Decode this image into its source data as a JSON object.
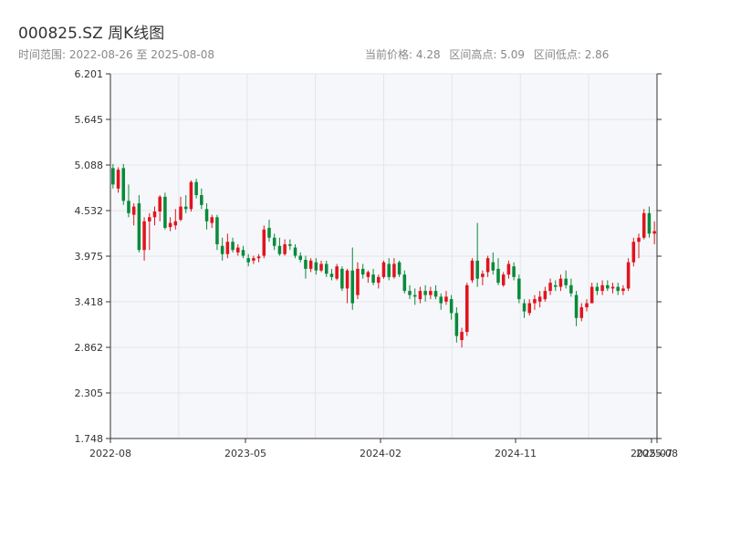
{
  "header": {
    "title": "000825.SZ 周K线图",
    "range_label": "时间范围:",
    "range_start": "2022-08-26",
    "range_sep": "至",
    "range_end": "2025-08-08",
    "current_price_label": "当前价格:",
    "current_price": "4.28",
    "high_label": "区间高点:",
    "high": "5.09",
    "low_label": "区间低点:",
    "low": "2.86"
  },
  "colors": {
    "up": "#e0141e",
    "down": "#0a8a3a",
    "plot_bg": "#f5f7fa",
    "grid": "#e2e6ea",
    "axis": "#333333"
  },
  "chart_data": {
    "type": "candlestick",
    "period": "weekly",
    "ylim": [
      1.748,
      6.201
    ],
    "y_ticks": [
      "1.748",
      "2.305",
      "2.862",
      "3.418",
      "3.975",
      "4.532",
      "5.088",
      "5.645",
      "6.201"
    ],
    "x_tick_labels": [
      "2022-08",
      "2023-05",
      "2024-02",
      "2024-11",
      "2025-07",
      "2025-08"
    ],
    "grid": true,
    "candles": [
      {
        "o": 5.05,
        "h": 5.1,
        "l": 4.8,
        "c": 4.85
      },
      {
        "o": 4.8,
        "h": 5.06,
        "l": 4.75,
        "c": 5.03
      },
      {
        "o": 5.05,
        "h": 5.1,
        "l": 4.6,
        "c": 4.65
      },
      {
        "o": 4.65,
        "h": 4.85,
        "l": 4.45,
        "c": 4.5
      },
      {
        "o": 4.48,
        "h": 4.62,
        "l": 4.35,
        "c": 4.58
      },
      {
        "o": 4.62,
        "h": 4.72,
        "l": 4.02,
        "c": 4.05
      },
      {
        "o": 4.05,
        "h": 4.45,
        "l": 3.92,
        "c": 4.4
      },
      {
        "o": 4.4,
        "h": 4.5,
        "l": 4.05,
        "c": 4.45
      },
      {
        "o": 4.45,
        "h": 4.58,
        "l": 4.35,
        "c": 4.52
      },
      {
        "o": 4.52,
        "h": 4.72,
        "l": 4.4,
        "c": 4.7
      },
      {
        "o": 4.7,
        "h": 4.75,
        "l": 4.3,
        "c": 4.32
      },
      {
        "o": 4.33,
        "h": 4.45,
        "l": 4.28,
        "c": 4.38
      },
      {
        "o": 4.35,
        "h": 4.55,
        "l": 4.3,
        "c": 4.4
      },
      {
        "o": 4.42,
        "h": 4.7,
        "l": 4.4,
        "c": 4.58
      },
      {
        "o": 4.58,
        "h": 4.72,
        "l": 4.5,
        "c": 4.55
      },
      {
        "o": 4.55,
        "h": 4.9,
        "l": 4.52,
        "c": 4.88
      },
      {
        "o": 4.88,
        "h": 4.92,
        "l": 4.68,
        "c": 4.72
      },
      {
        "o": 4.72,
        "h": 4.8,
        "l": 4.55,
        "c": 4.6
      },
      {
        "o": 4.55,
        "h": 4.62,
        "l": 4.3,
        "c": 4.4
      },
      {
        "o": 4.38,
        "h": 4.48,
        "l": 4.32,
        "c": 4.45
      },
      {
        "o": 4.45,
        "h": 4.48,
        "l": 4.05,
        "c": 4.12
      },
      {
        "o": 4.1,
        "h": 4.2,
        "l": 3.92,
        "c": 4.0
      },
      {
        "o": 4.0,
        "h": 4.25,
        "l": 3.95,
        "c": 4.15
      },
      {
        "o": 4.15,
        "h": 4.2,
        "l": 4.02,
        "c": 4.05
      },
      {
        "o": 4.02,
        "h": 4.12,
        "l": 3.98,
        "c": 4.08
      },
      {
        "o": 4.05,
        "h": 4.1,
        "l": 3.95,
        "c": 3.98
      },
      {
        "o": 3.95,
        "h": 4.0,
        "l": 3.85,
        "c": 3.9
      },
      {
        "o": 3.92,
        "h": 3.98,
        "l": 3.88,
        "c": 3.95
      },
      {
        "o": 3.95,
        "h": 4.0,
        "l": 3.9,
        "c": 3.97
      },
      {
        "o": 3.98,
        "h": 4.35,
        "l": 3.95,
        "c": 4.3
      },
      {
        "o": 4.32,
        "h": 4.42,
        "l": 4.15,
        "c": 4.2
      },
      {
        "o": 4.2,
        "h": 4.25,
        "l": 4.05,
        "c": 4.1
      },
      {
        "o": 4.1,
        "h": 4.2,
        "l": 3.98,
        "c": 4.0
      },
      {
        "o": 4.0,
        "h": 4.18,
        "l": 3.98,
        "c": 4.12
      },
      {
        "o": 4.12,
        "h": 4.18,
        "l": 4.05,
        "c": 4.1
      },
      {
        "o": 4.08,
        "h": 4.12,
        "l": 3.95,
        "c": 3.98
      },
      {
        "o": 3.98,
        "h": 4.02,
        "l": 3.9,
        "c": 3.93
      },
      {
        "o": 3.93,
        "h": 3.98,
        "l": 3.7,
        "c": 3.82
      },
      {
        "o": 3.82,
        "h": 3.95,
        "l": 3.78,
        "c": 3.92
      },
      {
        "o": 3.9,
        "h": 3.95,
        "l": 3.75,
        "c": 3.8
      },
      {
        "o": 3.8,
        "h": 3.92,
        "l": 3.78,
        "c": 3.88
      },
      {
        "o": 3.88,
        "h": 3.92,
        "l": 3.72,
        "c": 3.76
      },
      {
        "o": 3.76,
        "h": 3.82,
        "l": 3.68,
        "c": 3.72
      },
      {
        "o": 3.7,
        "h": 3.88,
        "l": 3.68,
        "c": 3.85
      },
      {
        "o": 3.82,
        "h": 3.85,
        "l": 3.55,
        "c": 3.58
      },
      {
        "o": 3.58,
        "h": 3.82,
        "l": 3.4,
        "c": 3.8
      },
      {
        "o": 3.8,
        "h": 4.08,
        "l": 3.32,
        "c": 3.4
      },
      {
        "o": 3.5,
        "h": 3.9,
        "l": 3.45,
        "c": 3.82
      },
      {
        "o": 3.82,
        "h": 3.88,
        "l": 3.7,
        "c": 3.75
      },
      {
        "o": 3.72,
        "h": 3.8,
        "l": 3.65,
        "c": 3.78
      },
      {
        "o": 3.75,
        "h": 3.82,
        "l": 3.62,
        "c": 3.65
      },
      {
        "o": 3.65,
        "h": 3.75,
        "l": 3.58,
        "c": 3.72
      },
      {
        "o": 3.72,
        "h": 3.92,
        "l": 3.7,
        "c": 3.9
      },
      {
        "o": 3.88,
        "h": 3.95,
        "l": 3.68,
        "c": 3.72
      },
      {
        "o": 3.72,
        "h": 3.95,
        "l": 3.7,
        "c": 3.88
      },
      {
        "o": 3.9,
        "h": 3.92,
        "l": 3.72,
        "c": 3.75
      },
      {
        "o": 3.75,
        "h": 3.8,
        "l": 3.52,
        "c": 3.55
      },
      {
        "o": 3.55,
        "h": 3.62,
        "l": 3.45,
        "c": 3.5
      },
      {
        "o": 3.5,
        "h": 3.58,
        "l": 3.38,
        "c": 3.48
      },
      {
        "o": 3.45,
        "h": 3.6,
        "l": 3.4,
        "c": 3.55
      },
      {
        "o": 3.55,
        "h": 3.62,
        "l": 3.42,
        "c": 3.5
      },
      {
        "o": 3.5,
        "h": 3.6,
        "l": 3.45,
        "c": 3.55
      },
      {
        "o": 3.55,
        "h": 3.62,
        "l": 3.45,
        "c": 3.48
      },
      {
        "o": 3.48,
        "h": 3.52,
        "l": 3.32,
        "c": 3.4
      },
      {
        "o": 3.42,
        "h": 3.55,
        "l": 3.38,
        "c": 3.48
      },
      {
        "o": 3.45,
        "h": 3.5,
        "l": 3.2,
        "c": 3.28
      },
      {
        "o": 3.28,
        "h": 3.35,
        "l": 2.92,
        "c": 3.0
      },
      {
        "o": 2.95,
        "h": 3.1,
        "l": 2.86,
        "c": 3.05
      },
      {
        "o": 3.05,
        "h": 3.65,
        "l": 3.0,
        "c": 3.62
      },
      {
        "o": 3.68,
        "h": 3.95,
        "l": 3.65,
        "c": 3.92
      },
      {
        "o": 3.92,
        "h": 4.38,
        "l": 3.6,
        "c": 3.7
      },
      {
        "o": 3.72,
        "h": 3.8,
        "l": 3.62,
        "c": 3.76
      },
      {
        "o": 3.78,
        "h": 3.98,
        "l": 3.72,
        "c": 3.95
      },
      {
        "o": 3.9,
        "h": 4.02,
        "l": 3.75,
        "c": 3.8
      },
      {
        "o": 3.82,
        "h": 3.95,
        "l": 3.62,
        "c": 3.65
      },
      {
        "o": 3.62,
        "h": 3.78,
        "l": 3.6,
        "c": 3.75
      },
      {
        "o": 3.75,
        "h": 3.92,
        "l": 3.7,
        "c": 3.88
      },
      {
        "o": 3.85,
        "h": 3.9,
        "l": 3.68,
        "c": 3.72
      },
      {
        "o": 3.7,
        "h": 3.75,
        "l": 3.4,
        "c": 3.45
      },
      {
        "o": 3.4,
        "h": 3.45,
        "l": 3.22,
        "c": 3.3
      },
      {
        "o": 3.28,
        "h": 3.45,
        "l": 3.25,
        "c": 3.4
      },
      {
        "o": 3.4,
        "h": 3.5,
        "l": 3.32,
        "c": 3.45
      },
      {
        "o": 3.42,
        "h": 3.55,
        "l": 3.35,
        "c": 3.48
      },
      {
        "o": 3.45,
        "h": 3.6,
        "l": 3.42,
        "c": 3.55
      },
      {
        "o": 3.55,
        "h": 3.7,
        "l": 3.5,
        "c": 3.65
      },
      {
        "o": 3.62,
        "h": 3.68,
        "l": 3.55,
        "c": 3.6
      },
      {
        "o": 3.6,
        "h": 3.75,
        "l": 3.55,
        "c": 3.7
      },
      {
        "o": 3.7,
        "h": 3.8,
        "l": 3.58,
        "c": 3.62
      },
      {
        "o": 3.62,
        "h": 3.7,
        "l": 3.48,
        "c": 3.52
      },
      {
        "o": 3.5,
        "h": 3.55,
        "l": 3.12,
        "c": 3.22
      },
      {
        "o": 3.22,
        "h": 3.4,
        "l": 3.18,
        "c": 3.35
      },
      {
        "o": 3.35,
        "h": 3.45,
        "l": 3.3,
        "c": 3.4
      },
      {
        "o": 3.4,
        "h": 3.65,
        "l": 3.4,
        "c": 3.6
      },
      {
        "o": 3.6,
        "h": 3.65,
        "l": 3.5,
        "c": 3.55
      },
      {
        "o": 3.55,
        "h": 3.68,
        "l": 3.5,
        "c": 3.62
      },
      {
        "o": 3.62,
        "h": 3.68,
        "l": 3.55,
        "c": 3.58
      },
      {
        "o": 3.58,
        "h": 3.65,
        "l": 3.52,
        "c": 3.6
      },
      {
        "o": 3.6,
        "h": 3.65,
        "l": 3.5,
        "c": 3.55
      },
      {
        "o": 3.55,
        "h": 3.62,
        "l": 3.5,
        "c": 3.58
      },
      {
        "o": 3.58,
        "h": 3.95,
        "l": 3.55,
        "c": 3.9
      },
      {
        "o": 3.9,
        "h": 4.2,
        "l": 3.85,
        "c": 4.15
      },
      {
        "o": 4.15,
        "h": 4.25,
        "l": 3.95,
        "c": 4.2
      },
      {
        "o": 4.2,
        "h": 4.55,
        "l": 4.18,
        "c": 4.5
      },
      {
        "o": 4.5,
        "h": 4.58,
        "l": 4.2,
        "c": 4.25
      },
      {
        "o": 4.25,
        "h": 4.4,
        "l": 4.12,
        "c": 4.28
      }
    ]
  }
}
